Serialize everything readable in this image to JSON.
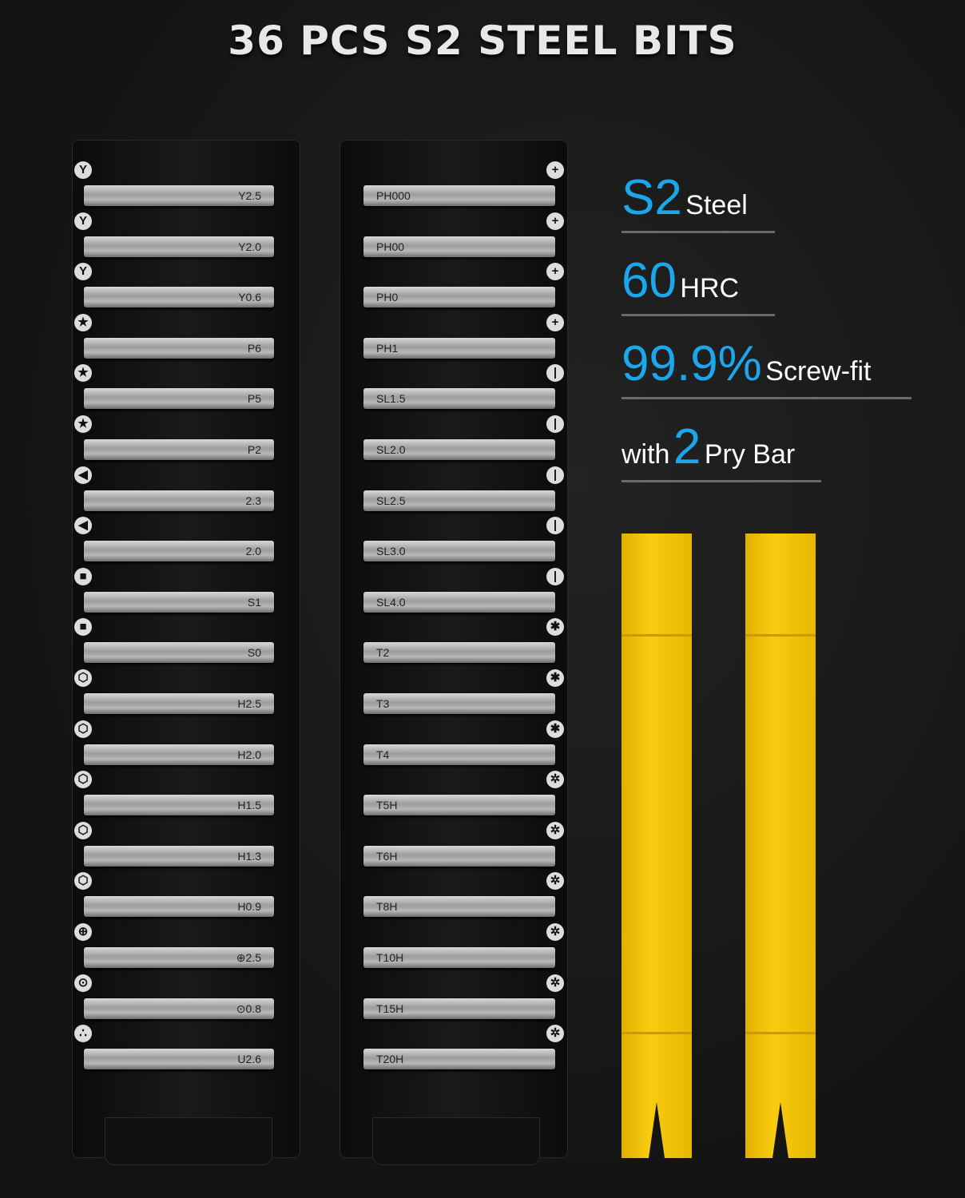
{
  "title": "36 PCS S2 STEEL BITS",
  "features": [
    {
      "big": "S2",
      "small": "Steel"
    },
    {
      "big": "60",
      "small": "HRC"
    },
    {
      "big": "99.9%",
      "small": "Screw-fit"
    },
    {
      "pre": "with",
      "big": "2",
      "small": "Pry Bar"
    }
  ],
  "left_bits": [
    {
      "label": "Y2.5",
      "icon": "Y"
    },
    {
      "label": "Y2.0",
      "icon": "Y"
    },
    {
      "label": "Y0.6",
      "icon": "Y"
    },
    {
      "label": "P6",
      "icon": "★"
    },
    {
      "label": "P5",
      "icon": "★"
    },
    {
      "label": "P2",
      "icon": "★"
    },
    {
      "label": "2.3",
      "icon": "◀"
    },
    {
      "label": "2.0",
      "icon": "◀"
    },
    {
      "label": "S1",
      "icon": "■"
    },
    {
      "label": "S0",
      "icon": "■"
    },
    {
      "label": "H2.5",
      "icon": "⬡"
    },
    {
      "label": "H2.0",
      "icon": "⬡"
    },
    {
      "label": "H1.5",
      "icon": "⬡"
    },
    {
      "label": "H1.3",
      "icon": "⬡"
    },
    {
      "label": "H0.9",
      "icon": "⬡"
    },
    {
      "label": "⊕2.5",
      "icon": "⊕"
    },
    {
      "label": "⊙0.8",
      "icon": "⊙"
    },
    {
      "label": "U2.6",
      "icon": "∴"
    }
  ],
  "right_bits": [
    {
      "label": "PH000",
      "icon": "+"
    },
    {
      "label": "PH00",
      "icon": "+"
    },
    {
      "label": "PH0",
      "icon": "+"
    },
    {
      "label": "PH1",
      "icon": "+"
    },
    {
      "label": "SL1.5",
      "icon": "|"
    },
    {
      "label": "SL2.0",
      "icon": "|"
    },
    {
      "label": "SL2.5",
      "icon": "|"
    },
    {
      "label": "SL3.0",
      "icon": "|"
    },
    {
      "label": "SL4.0",
      "icon": "|"
    },
    {
      "label": "T2",
      "icon": "✱"
    },
    {
      "label": "T3",
      "icon": "✱"
    },
    {
      "label": "T4",
      "icon": "✱"
    },
    {
      "label": "T5H",
      "icon": "✲"
    },
    {
      "label": "T6H",
      "icon": "✲"
    },
    {
      "label": "T8H",
      "icon": "✲"
    },
    {
      "label": "T10H",
      "icon": "✲"
    },
    {
      "label": "T15H",
      "icon": "✲"
    },
    {
      "label": "T20H",
      "icon": "✲"
    }
  ],
  "colors": {
    "accent": "#1aa7ec",
    "pry_bar": "#f8cc10"
  }
}
